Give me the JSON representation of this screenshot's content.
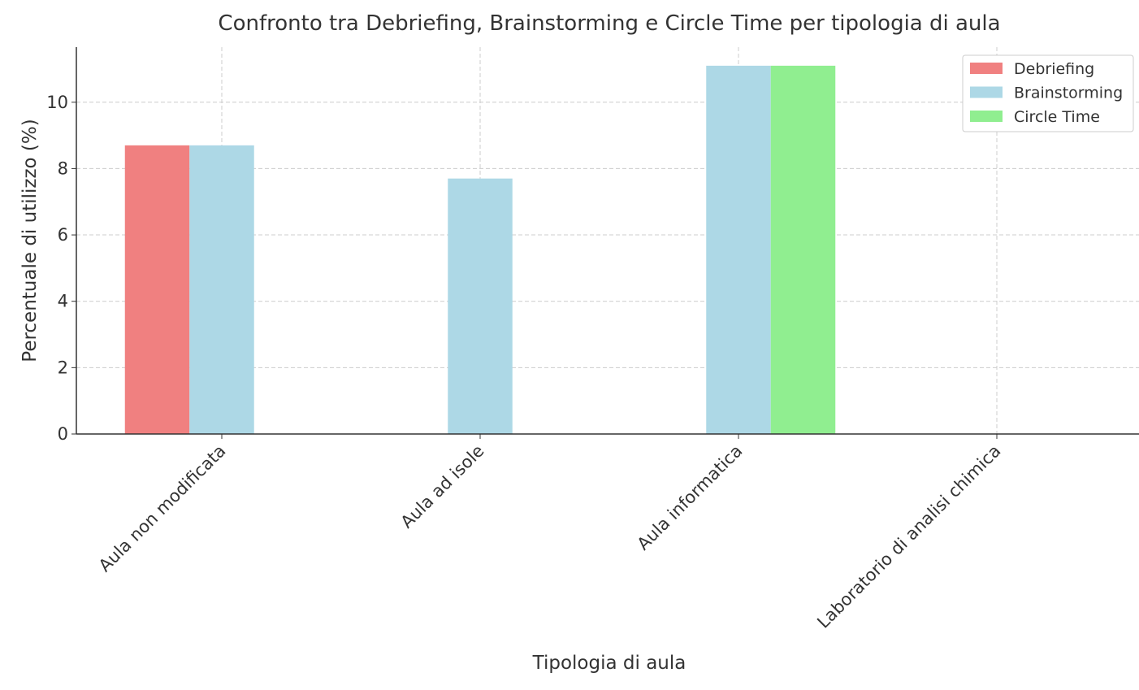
{
  "chart_data": {
    "type": "bar",
    "title": "Confronto tra Debriefing, Brainstorming e Circle Time per tipologia di aula",
    "x_label": "Tipologia di aula",
    "y_label": "Percentuale di utilizzo (%)",
    "categories": [
      "Aula non modificata",
      "Aula ad isole",
      "Aula informatica",
      "Laboratorio di analisi chimica"
    ],
    "series": [
      {
        "name": "Debriefing",
        "color": "#f08080",
        "values": [
          8.7,
          0,
          0,
          0
        ]
      },
      {
        "name": "Brainstorming",
        "color": "#add8e6",
        "values": [
          8.7,
          7.7,
          11.1,
          0
        ]
      },
      {
        "name": "Circle Time",
        "color": "#90ee90",
        "values": [
          0,
          0,
          11.1,
          0
        ]
      }
    ],
    "ylim": [
      0,
      11.66
    ],
    "yticks": [
      0,
      2,
      4,
      6,
      8,
      10
    ],
    "grid": true,
    "legend": "upper right"
  }
}
